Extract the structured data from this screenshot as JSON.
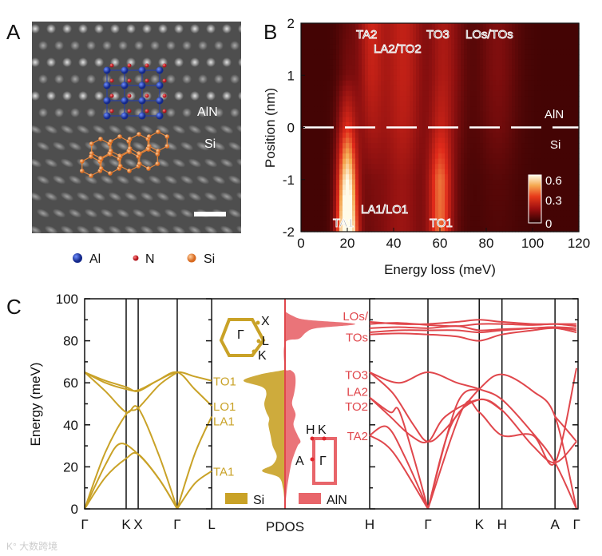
{
  "panels": {
    "a": "A",
    "b": "B",
    "c": "C"
  },
  "panel_a": {
    "labels": {
      "aln": "AlN",
      "si": "Si"
    },
    "legend": [
      {
        "label": "Al",
        "color": "#1f3a9a"
      },
      {
        "label": "N",
        "color": "#d8262c"
      },
      {
        "label": "Si",
        "color": "#e8863a"
      }
    ]
  },
  "colors": {
    "si": "#c9a227",
    "aln": "#e0474c",
    "aln_fill": "#e8656a"
  },
  "chart_data": [
    {
      "type": "heatmap",
      "xlabel": "Energy loss (meV)",
      "ylabel": "Position (nm)",
      "xlim": [
        0,
        120
      ],
      "ylim": [
        -2,
        2
      ],
      "xticks": [
        "0",
        "20",
        "40",
        "60",
        "80",
        "100",
        "120"
      ],
      "yticks": [
        "-2",
        "-1",
        "0",
        "1",
        "2"
      ],
      "colorbar": {
        "ticks": [
          "0.6",
          "0.3",
          "0"
        ],
        "range": [
          0,
          0.6
        ]
      },
      "interface_position": 0,
      "region_labels": {
        "upper": "AlN",
        "lower": "Si"
      },
      "positions": [
        -2,
        -1,
        0,
        1,
        2
      ],
      "background": 0.04,
      "peaks": [
        {
          "name": "TA1",
          "energy": 20,
          "sigma": 3,
          "amp": [
            0.75,
            0.55,
            0.25,
            0.07,
            0.04
          ]
        },
        {
          "name": "LA1/LO1",
          "energy": 42,
          "sigma": 8,
          "amp": [
            0.1,
            0.09,
            0.1,
            0.09,
            0.09
          ]
        },
        {
          "name": "TO1",
          "energy": 60,
          "sigma": 3.5,
          "amp": [
            0.3,
            0.3,
            0.13,
            0.07,
            0.06
          ]
        },
        {
          "name": "TA2",
          "energy": 30,
          "sigma": 4,
          "amp": [
            0.03,
            0.05,
            0.12,
            0.17,
            0.19
          ]
        },
        {
          "name": "LA2/TO2",
          "energy": 45,
          "sigma": 6,
          "amp": [
            0.04,
            0.05,
            0.09,
            0.12,
            0.12
          ]
        },
        {
          "name": "TO3",
          "energy": 64,
          "sigma": 5,
          "amp": [
            0.04,
            0.05,
            0.09,
            0.11,
            0.11
          ]
        },
        {
          "name": "LOs/TOs",
          "energy": 85,
          "sigma": 6,
          "amp": [
            0.02,
            0.03,
            0.07,
            0.09,
            0.09
          ]
        }
      ],
      "peak_labels": [
        "TA2",
        "LA2/TO2",
        "TO3",
        "LOs/TOs",
        "LA1/LO1",
        "TA1",
        "TO1"
      ]
    },
    {
      "type": "line",
      "ylabel": "Energy (meV)",
      "ylim": [
        0,
        100
      ],
      "yticks": [
        "0",
        "20",
        "40",
        "60",
        "80",
        "100"
      ],
      "si_path": {
        "points": [
          [
            "Γ",
            0
          ],
          [
            "K",
            1
          ],
          [
            "X",
            1.29
          ],
          [
            "Γ",
            2.23
          ],
          [
            "L",
            3.06
          ]
        ]
      },
      "aln_path": {
        "points": [
          [
            "H",
            0
          ],
          [
            "Γ",
            1
          ],
          [
            "K",
            1.88
          ],
          [
            "H",
            2.27
          ],
          [
            "A",
            3.18
          ],
          [
            "Γ",
            3.55
          ]
        ]
      },
      "pdos_label": "PDOS",
      "si_branches": [
        [
          [
            0,
            65
          ],
          [
            0.5,
            61
          ],
          [
            1,
            58
          ],
          [
            1.29,
            56
          ],
          [
            1.75,
            61
          ],
          [
            2.23,
            65
          ],
          [
            2.65,
            63
          ],
          [
            3.06,
            61
          ]
        ],
        [
          [
            0,
            65
          ],
          [
            0.5,
            60
          ],
          [
            1,
            57
          ],
          [
            1.29,
            56.5
          ],
          [
            1.75,
            61
          ],
          [
            2.23,
            65
          ],
          [
            2.65,
            57
          ],
          [
            3.06,
            49
          ]
        ],
        [
          [
            0,
            65
          ],
          [
            0.5,
            56
          ],
          [
            1,
            46
          ],
          [
            1.29,
            48
          ],
          [
            1.8,
            25
          ],
          [
            2.23,
            0
          ]
        ],
        [
          [
            0,
            0
          ],
          [
            0.5,
            27
          ],
          [
            1,
            45
          ],
          [
            1.29,
            48
          ],
          [
            1.8,
            59
          ],
          [
            2.23,
            65
          ]
        ],
        [
          [
            0,
            0
          ],
          [
            0.5,
            21
          ],
          [
            0.85,
            31
          ],
          [
            1.29,
            26
          ],
          [
            1.8,
            14
          ],
          [
            2.23,
            0
          ]
        ],
        [
          [
            0,
            0
          ],
          [
            0.5,
            15
          ],
          [
            1,
            24
          ],
          [
            1.29,
            26
          ],
          [
            1.8,
            14
          ],
          [
            2.23,
            0
          ]
        ],
        [
          [
            2.23,
            0
          ],
          [
            2.65,
            26
          ],
          [
            3.06,
            44
          ]
        ],
        [
          [
            2.23,
            0
          ],
          [
            2.65,
            12
          ],
          [
            3.06,
            18
          ]
        ]
      ],
      "aln_branches": [
        [
          [
            0,
            89
          ],
          [
            0.5,
            88
          ],
          [
            1,
            88
          ],
          [
            1.5,
            89
          ],
          [
            1.88,
            90
          ],
          [
            2.27,
            89
          ],
          [
            2.8,
            88
          ],
          [
            3.18,
            88
          ],
          [
            3.55,
            88
          ]
        ],
        [
          [
            0,
            88
          ],
          [
            0.5,
            88.5
          ],
          [
            1,
            87.5
          ],
          [
            1.5,
            87
          ],
          [
            1.88,
            88
          ],
          [
            2.27,
            88
          ],
          [
            2.8,
            87.5
          ],
          [
            3.18,
            88
          ],
          [
            3.55,
            87
          ]
        ],
        [
          [
            0,
            86
          ],
          [
            0.5,
            86.5
          ],
          [
            1,
            86
          ],
          [
            1.5,
            87
          ],
          [
            1.88,
            85
          ],
          [
            2.27,
            85.5
          ],
          [
            2.8,
            86
          ],
          [
            3.18,
            86.5
          ],
          [
            3.55,
            86
          ]
        ],
        [
          [
            0,
            84
          ],
          [
            0.5,
            85
          ],
          [
            1,
            85
          ],
          [
            1.5,
            85
          ],
          [
            1.88,
            84
          ],
          [
            2.27,
            85
          ],
          [
            2.8,
            86
          ],
          [
            3.18,
            86.5
          ],
          [
            3.55,
            85
          ]
        ],
        [
          [
            0,
            83
          ],
          [
            0.5,
            83.5
          ],
          [
            1,
            83
          ],
          [
            1.5,
            82
          ],
          [
            1.88,
            80
          ],
          [
            2.27,
            83
          ],
          [
            2.8,
            85
          ],
          [
            3.18,
            86
          ],
          [
            3.55,
            84
          ]
        ],
        [
          [
            0,
            65
          ],
          [
            0.5,
            60
          ],
          [
            1,
            65
          ],
          [
            1.5,
            60
          ],
          [
            1.88,
            57
          ],
          [
            2.27,
            52
          ],
          [
            2.8,
            36
          ],
          [
            3.18,
            22
          ],
          [
            3.55,
            0
          ]
        ],
        [
          [
            0,
            65
          ],
          [
            0.4,
            55
          ],
          [
            0.75,
            40
          ],
          [
            1,
            32
          ],
          [
            1.3,
            38
          ],
          [
            1.88,
            57
          ],
          [
            2.27,
            64
          ],
          [
            2.8,
            56
          ],
          [
            3.18,
            44
          ],
          [
            3.55,
            0
          ]
        ],
        [
          [
            0,
            53
          ],
          [
            0.35,
            44
          ],
          [
            0.7,
            35
          ],
          [
            1,
            32
          ],
          [
            1.3,
            44
          ],
          [
            1.88,
            52
          ],
          [
            2.27,
            47
          ],
          [
            2.8,
            30
          ],
          [
            3.18,
            22
          ],
          [
            3.55,
            32
          ]
        ],
        [
          [
            0,
            53
          ],
          [
            0.35,
            46
          ],
          [
            0.5,
            47
          ],
          [
            0.75,
            25
          ],
          [
            1,
            0
          ]
        ],
        [
          [
            0,
            35
          ],
          [
            0.3,
            39
          ],
          [
            0.6,
            25
          ],
          [
            1,
            0
          ]
        ],
        [
          [
            0,
            35
          ],
          [
            0.4,
            27
          ],
          [
            1,
            0
          ]
        ],
        [
          [
            1,
            0
          ],
          [
            1.4,
            40
          ],
          [
            1.88,
            52
          ],
          [
            2.27,
            47
          ]
        ],
        [
          [
            1,
            0
          ],
          [
            1.5,
            50
          ],
          [
            1.88,
            57
          ]
        ],
        [
          [
            1,
            0
          ],
          [
            1.6,
            48
          ],
          [
            1.88,
            46
          ],
          [
            2.27,
            35
          ],
          [
            2.8,
            35
          ],
          [
            3.18,
            22
          ],
          [
            3.55,
            67
          ]
        ],
        [
          [
            3.18,
            44
          ],
          [
            3.4,
            37
          ],
          [
            3.55,
            32
          ]
        ]
      ],
      "pdos_si": [
        [
          0,
          0
        ],
        [
          5,
          0.02
        ],
        [
          10,
          0.05
        ],
        [
          15,
          0.15
        ],
        [
          18,
          0.55
        ],
        [
          21,
          0.3
        ],
        [
          25,
          0.2
        ],
        [
          30,
          0.3
        ],
        [
          35,
          0.35
        ],
        [
          40,
          0.4
        ],
        [
          43,
          0.38
        ],
        [
          46,
          0.45
        ],
        [
          50,
          0.5
        ],
        [
          55,
          0.45
        ],
        [
          58,
          0.55
        ],
        [
          61,
          1.0
        ],
        [
          64,
          0.6
        ],
        [
          66,
          0.05
        ],
        [
          67,
          0
        ]
      ],
      "pdos_aln": [
        [
          0,
          0
        ],
        [
          10,
          0.03
        ],
        [
          20,
          0.08
        ],
        [
          25,
          0.12
        ],
        [
          30,
          0.18
        ],
        [
          32,
          0.22
        ],
        [
          35,
          0.18
        ],
        [
          40,
          0.12
        ],
        [
          45,
          0.15
        ],
        [
          50,
          0.1
        ],
        [
          55,
          0.13
        ],
        [
          60,
          0.15
        ],
        [
          64,
          0.14
        ],
        [
          66,
          0.08
        ],
        [
          67,
          0
        ],
        [
          79,
          0
        ],
        [
          81,
          0.2
        ],
        [
          84,
          0.3
        ],
        [
          86,
          0.45
        ],
        [
          88,
          1.0
        ],
        [
          90,
          0.3
        ],
        [
          92,
          0.1
        ],
        [
          94,
          0
        ]
      ],
      "si_labels": [
        "TO1",
        "LO1",
        "LA1",
        "TA1"
      ],
      "si_label_energies": [
        61,
        49,
        42,
        18
      ],
      "aln_labels": [
        "LOs/",
        "TOs",
        "TO3",
        "LA2",
        "TO2",
        "TA2"
      ],
      "aln_label_energies": [
        92,
        82,
        64,
        56,
        49,
        35
      ],
      "legend": [
        {
          "label": "Si"
        },
        {
          "label": "AlN"
        }
      ],
      "bz_si": {
        "center": "Γ",
        "points": [
          "X",
          "L",
          "K"
        ]
      },
      "bz_aln": {
        "center": "Γ",
        "points": [
          "H",
          "K",
          "A"
        ]
      }
    }
  ]
}
